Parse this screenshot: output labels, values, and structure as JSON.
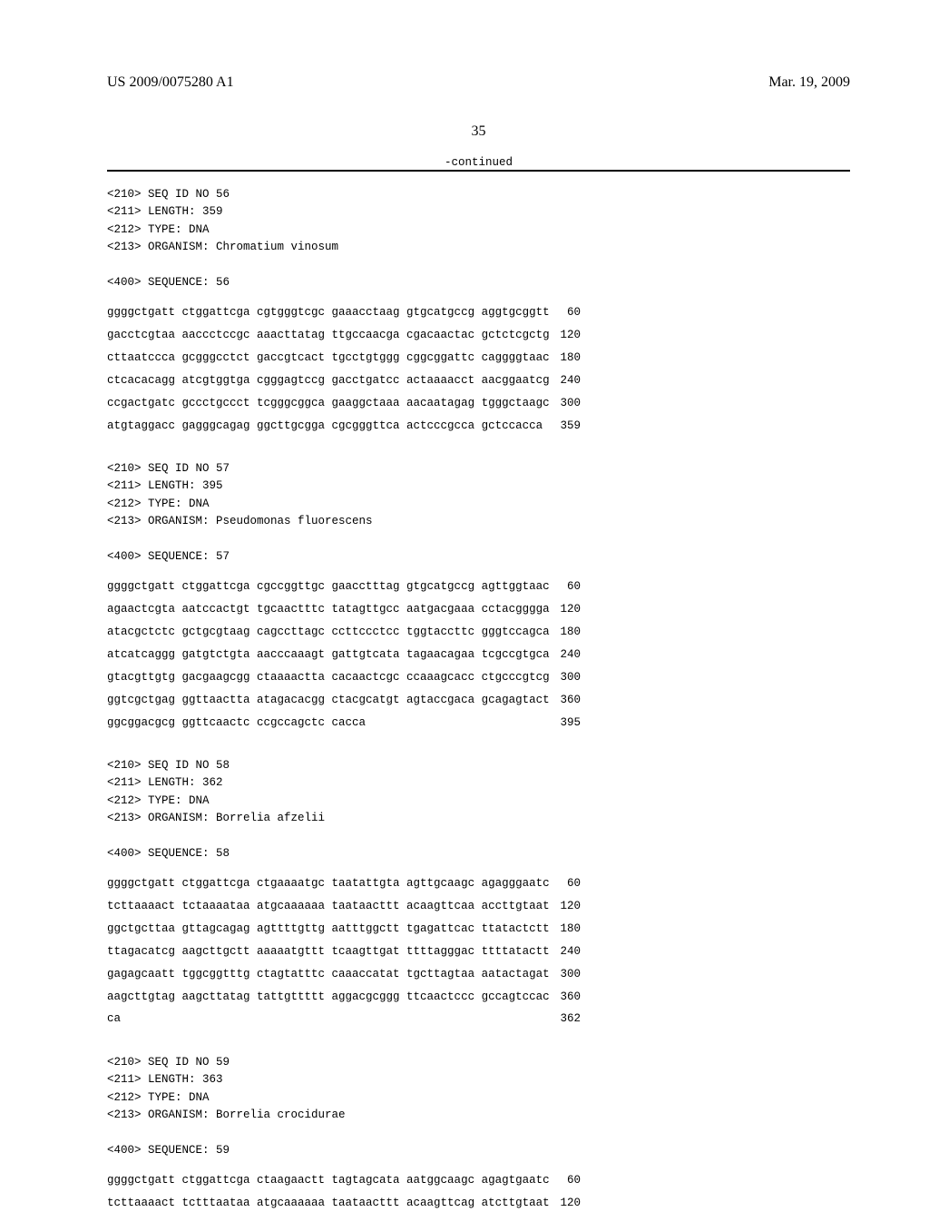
{
  "header": {
    "left": "US 2009/0075280 A1",
    "right": "Mar. 19, 2009"
  },
  "page_number": "35",
  "continued": "-continued",
  "sequences": [
    {
      "meta": [
        "<210> SEQ ID NO 56",
        "<211> LENGTH: 359",
        "<212> TYPE: DNA",
        "<213> ORGANISM: Chromatium vinosum",
        "",
        "<400> SEQUENCE: 56"
      ],
      "rows": [
        {
          "text": "ggggctgatt ctggattcga cgtgggtcgc gaaacctaag gtgcatgccg aggtgcggtt",
          "num": "60"
        },
        {
          "text": "gacctcgtaa aaccctccgc aaacttatag ttgccaacga cgacaactac gctctcgctg",
          "num": "120"
        },
        {
          "text": "cttaatccca gcgggcctct gaccgtcact tgcctgtggg cggcggattc caggggtaac",
          "num": "180"
        },
        {
          "text": "ctcacacagg atcgtggtga cgggagtccg gacctgatcc actaaaacct aacggaatcg",
          "num": "240"
        },
        {
          "text": "ccgactgatc gccctgccct tcgggcggca gaaggctaaa aacaatagag tgggctaagc",
          "num": "300"
        },
        {
          "text": "atgtaggacc gagggcagag ggcttgcgga cgcgggttca actcccgcca gctccacca",
          "num": "359"
        }
      ]
    },
    {
      "meta": [
        "<210> SEQ ID NO 57",
        "<211> LENGTH: 395",
        "<212> TYPE: DNA",
        "<213> ORGANISM: Pseudomonas fluorescens",
        "",
        "<400> SEQUENCE: 57"
      ],
      "rows": [
        {
          "text": "ggggctgatt ctggattcga cgccggttgc gaacctttag gtgcatgccg agttggtaac",
          "num": "60"
        },
        {
          "text": "agaactcgta aatccactgt tgcaactttc tatagttgcc aatgacgaaa cctacgggga",
          "num": "120"
        },
        {
          "text": "atacgctctc gctgcgtaag cagccttagc ccttccctcc tggtaccttc gggtccagca",
          "num": "180"
        },
        {
          "text": "atcatcaggg gatgtctgta aacccaaagt gattgtcata tagaacagaa tcgccgtgca",
          "num": "240"
        },
        {
          "text": "gtacgttgtg gacgaagcgg ctaaaactta cacaactcgc ccaaagcacc ctgcccgtcg",
          "num": "300"
        },
        {
          "text": "ggtcgctgag ggttaactta atagacacgg ctacgcatgt agtaccgaca gcagagtact",
          "num": "360"
        },
        {
          "text": "ggcggacgcg ggttcaactc ccgccagctc cacca",
          "num": "395"
        }
      ]
    },
    {
      "meta": [
        "<210> SEQ ID NO 58",
        "<211> LENGTH: 362",
        "<212> TYPE: DNA",
        "<213> ORGANISM: Borrelia afzelii",
        "",
        "<400> SEQUENCE: 58"
      ],
      "rows": [
        {
          "text": "ggggctgatt ctggattcga ctgaaaatgc taatattgta agttgcaagc agagggaatc",
          "num": "60"
        },
        {
          "text": "tcttaaaact tctaaaataa atgcaaaaaa taataacttt acaagttcaa accttgtaat",
          "num": "120"
        },
        {
          "text": "ggctgcttaa gttagcagag agttttgttg aatttggctt tgagattcac ttatactctt",
          "num": "180"
        },
        {
          "text": "ttagacatcg aagcttgctt aaaaatgttt tcaagttgat ttttagggac ttttatactt",
          "num": "240"
        },
        {
          "text": "gagagcaatt tggcggtttg ctagtatttc caaaccatat tgcttagtaa aatactagat",
          "num": "300"
        },
        {
          "text": "aagcttgtag aagcttatag tattgttttt aggacgcggg ttcaactccc gccagtccac",
          "num": "360"
        },
        {
          "text": "ca",
          "num": "362"
        }
      ]
    },
    {
      "meta": [
        "<210> SEQ ID NO 59",
        "<211> LENGTH: 363",
        "<212> TYPE: DNA",
        "<213> ORGANISM: Borrelia crocidurae",
        "",
        "<400> SEQUENCE: 59"
      ],
      "rows": [
        {
          "text": "ggggctgatt ctggattcga ctaagaactt tagtagcata aatggcaagc agagtgaatc",
          "num": "60"
        },
        {
          "text": "tcttaaaact tctttaataa atgcaaaaaa taataacttt acaagttcag atcttgtaat",
          "num": "120"
        }
      ]
    }
  ]
}
